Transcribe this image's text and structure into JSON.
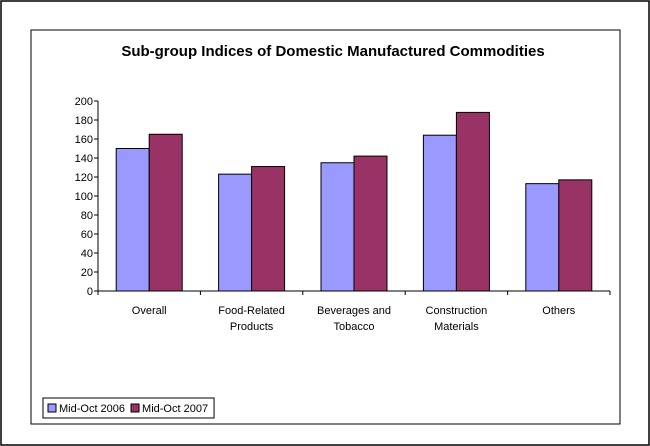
{
  "chart_data": {
    "type": "bar",
    "title": "Sub-group Indices of Domestic Manufactured Commodities",
    "categories": [
      [
        "Overall"
      ],
      [
        "Food-Related",
        "Products"
      ],
      [
        "Beverages and",
        "Tobacco"
      ],
      [
        "Construction",
        "Materials"
      ],
      [
        "Others"
      ]
    ],
    "series": [
      {
        "name": "Mid-Oct 2006",
        "color": "#9999ff",
        "values": [
          150,
          123,
          135,
          164,
          113
        ]
      },
      {
        "name": "Mid-Oct 2007",
        "color": "#993366",
        "values": [
          165,
          131,
          142,
          188,
          117
        ]
      }
    ],
    "ylim": [
      0,
      200
    ],
    "yticks": [
      0,
      20,
      40,
      60,
      80,
      100,
      120,
      140,
      160,
      180,
      200
    ],
    "grid": false,
    "legend": "bottom-left"
  }
}
